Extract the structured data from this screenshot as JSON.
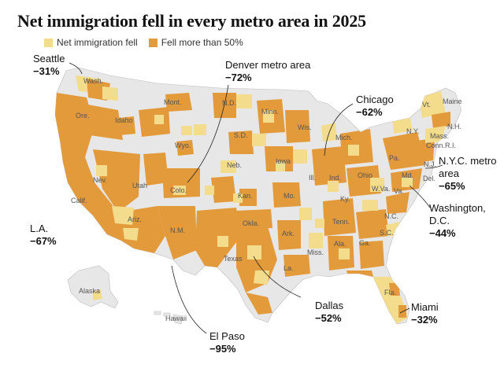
{
  "title": "Net immigration fell in every metro area in 2025",
  "legend": {
    "fell": {
      "label": "Net immigration fell",
      "color": "#f3dc8c"
    },
    "fell_50": {
      "label": "Fell more than 50%",
      "color": "#e39a3b"
    }
  },
  "colors": {
    "land": "#e7e7e7",
    "border": "#ffffff",
    "water": "#ffffff"
  },
  "callouts": [
    {
      "name": "Seattle",
      "value": "−31%"
    },
    {
      "name": "Denver metro area",
      "value": "−72%"
    },
    {
      "name": "Chicago",
      "value": "−62%"
    },
    {
      "name": "N.Y.C. metro area",
      "value": "−65%"
    },
    {
      "name": "Washington, D.C.",
      "value": "−44%"
    },
    {
      "name": "L.A.",
      "value": "−67%"
    },
    {
      "name": "Dallas",
      "value": "−52%"
    },
    {
      "name": "Miami",
      "value": "−32%"
    },
    {
      "name": "El Paso",
      "value": "−95%"
    }
  ],
  "state_labels": [
    "Wash.",
    "Ore.",
    "Idaho",
    "Mont.",
    "N.D.",
    "Minn.",
    "Wis.",
    "Mich.",
    "Vt.",
    "Maine",
    "N.H.",
    "N.Y.",
    "Mass.",
    "Conn.",
    "R.I.",
    "Calif.",
    "Nev.",
    "Utah",
    "Wyo.",
    "S.D.",
    "Neb.",
    "Iowa",
    "Ill.",
    "Ind.",
    "Ohio",
    "Pa.",
    "N.J.",
    "Del.",
    "Md.",
    "Colo.",
    "Kan.",
    "Mo.",
    "Ky.",
    "W.Va.",
    "Va.",
    "Ariz.",
    "N.M.",
    "Okla.",
    "Ark.",
    "Tenn.",
    "N.C.",
    "S.C.",
    "Texas",
    "La.",
    "Miss.",
    "Ala.",
    "Ga.",
    "Fla.",
    "Alaska",
    "Hawaii"
  ]
}
